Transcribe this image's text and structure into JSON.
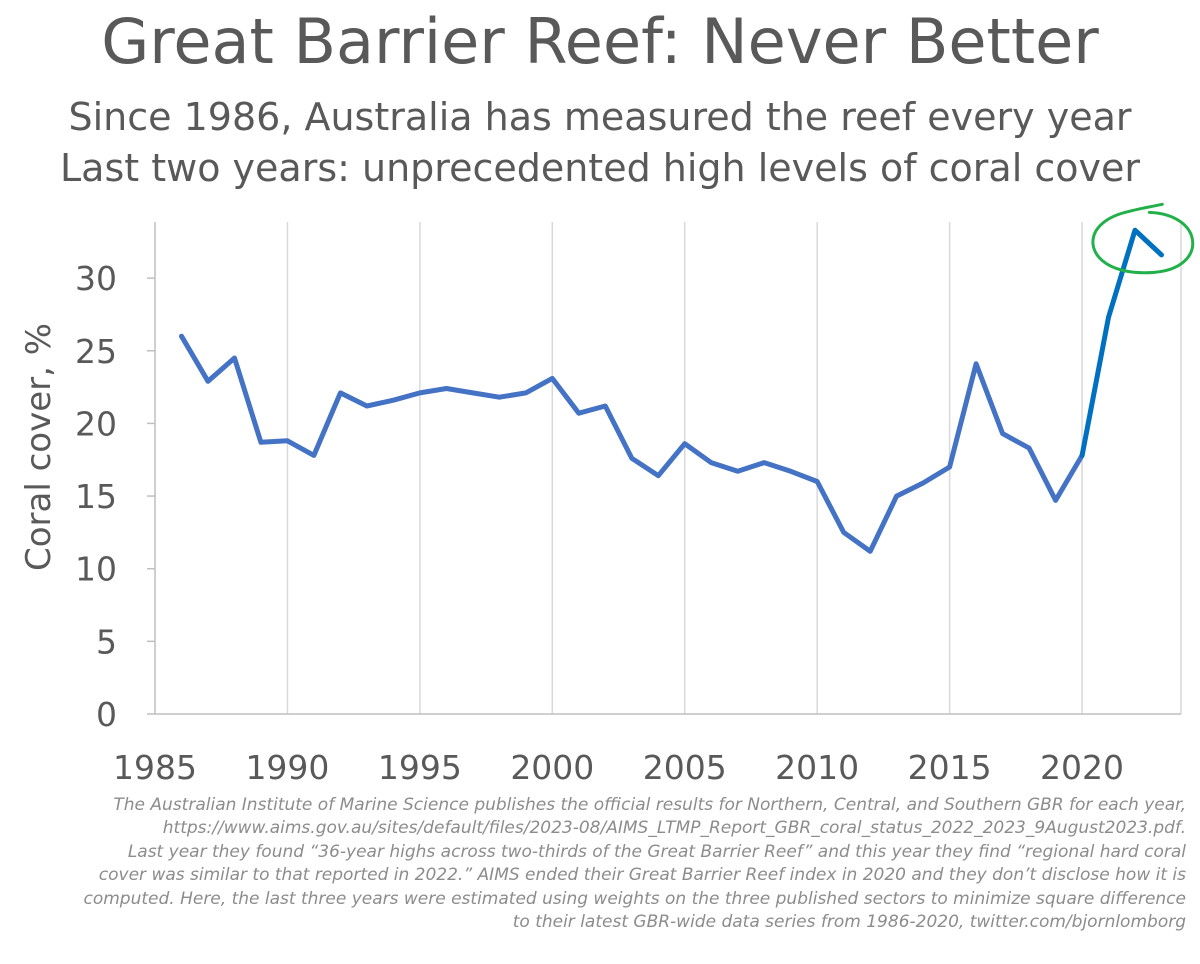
{
  "header": {
    "title": "Great Barrier Reef: Never Better",
    "subtitle_line1": "Since 1986, Australia has measured the reef every year",
    "subtitle_line2": "Last two years: unprecedented high levels of coral cover"
  },
  "chart_data": {
    "type": "line",
    "title": "Great Barrier Reef: Never Better",
    "xlabel": "",
    "ylabel": "Coral cover, %",
    "xlim": [
      1985,
      2024
    ],
    "ylim": [
      0,
      33
    ],
    "x_ticks": [
      1985,
      1990,
      1995,
      2000,
      2005,
      2010,
      2015,
      2020
    ],
    "y_ticks": [
      0,
      5,
      10,
      15,
      20,
      25,
      30
    ],
    "grid": "vertical",
    "legend": "none",
    "colors": {
      "line": "#4472c4",
      "estimated": "#0070c0",
      "highlight": "#22b04a"
    },
    "series": [
      {
        "x": [
          1986,
          1987,
          1988,
          1989,
          1990,
          1991,
          1992,
          1993,
          1994,
          1995,
          1996,
          1997,
          1998,
          1999,
          2000,
          2001,
          2002,
          2003,
          2004,
          2005,
          2006,
          2007,
          2008,
          2009,
          2010,
          2011,
          2012,
          2013,
          2014,
          2015,
          2016,
          2017,
          2018,
          2019,
          2020
        ],
        "values": [
          26.0,
          22.9,
          24.5,
          18.7,
          18.8,
          17.8,
          22.1,
          21.2,
          21.6,
          22.1,
          22.4,
          22.1,
          21.8,
          22.1,
          23.1,
          20.7,
          21.2,
          17.6,
          16.4,
          18.6,
          17.3,
          16.7,
          17.3,
          16.7,
          16.0,
          12.5,
          11.2,
          15.0,
          15.9,
          17.0,
          24.1,
          19.3,
          18.3,
          14.7,
          17.8
        ]
      },
      {
        "x": [
          2020,
          2021,
          2022,
          2023
        ],
        "values": [
          17.8,
          27.3,
          33.3,
          31.6
        ]
      }
    ]
  },
  "footnote": {
    "lines": [
      "The Australian Institute of Marine Science publishes the official results for Northern, Central, and Southern GBR for each year,",
      "https://www.aims.gov.au/sites/default/files/2023-08/AIMS_LTMP_Report_GBR_coral_status_2022_2023_9August2023.pdf.",
      "Last year they found “36-year highs across two-thirds of the Great Barrier Reef” and this year they find “regional hard coral",
      "cover was similar to that reported in 2022.” AIMS ended their Great Barrier Reef index in 2020 and they don’t disclose how it is",
      "computed. Here, the last three years were estimated using weights on the three published sectors to minimize square difference",
      "to their latest GBR-wide data series from 1986-2020, twitter.com/bjornlomborg"
    ]
  }
}
